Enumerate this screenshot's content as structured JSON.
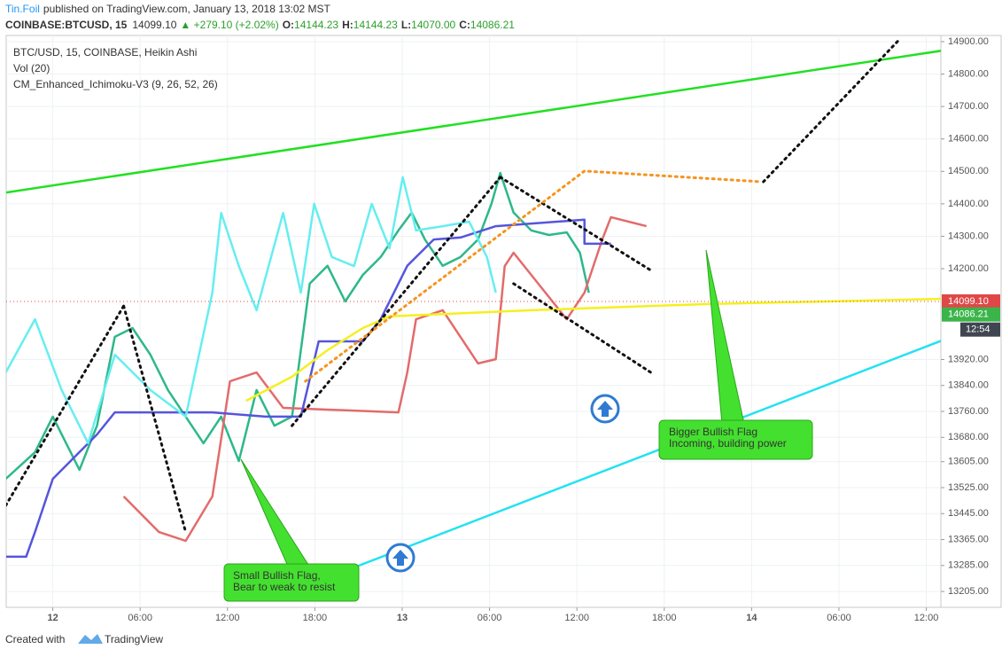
{
  "header": {
    "author": "Tin.Foil",
    "published": "published on TradingView.com, January 13, 2018 13:02 MST",
    "symbol": "COINBASE:BTCUSD, 15",
    "price": "14099.10",
    "change": "▲ +279.10 (+2.02%)",
    "o_label": "O:",
    "o": "14144.23",
    "h_label": "H:",
    "h": "14144.23",
    "l_label": "L:",
    "l": "14070.00",
    "c_label": "C:",
    "c": "14086.21"
  },
  "chart_data": {
    "type": "line",
    "legend": [
      "BTC/USD, 15, COINBASE, Heikin Ashi",
      "Vol (20)",
      "CM_Enhanced_Ichimoku-V3 (9, 26, 52, 26)"
    ],
    "xlim": [
      -3.2,
      61
    ],
    "ylim": [
      13156,
      14919
    ],
    "grid": true,
    "xticks": [
      {
        "value": 0,
        "label": "12"
      },
      {
        "value": 6,
        "label": "06:00"
      },
      {
        "value": 12,
        "label": "12:00"
      },
      {
        "value": 18,
        "label": "18:00"
      },
      {
        "value": 24,
        "label": "13"
      },
      {
        "value": 30,
        "label": "06:00"
      },
      {
        "value": 36,
        "label": "12:00"
      },
      {
        "value": 42,
        "label": "18:00"
      },
      {
        "value": 48,
        "label": "14"
      },
      {
        "value": 54,
        "label": "06:00"
      },
      {
        "value": 60,
        "label": "12:00"
      }
    ],
    "yticks": [
      {
        "value": 14900,
        "label": "14900.00"
      },
      {
        "value": 14800,
        "label": "14800.00"
      },
      {
        "value": 14700,
        "label": "14700.00"
      },
      {
        "value": 14600,
        "label": "14600.00"
      },
      {
        "value": 14500,
        "label": "14500.00"
      },
      {
        "value": 14400,
        "label": "14400.00"
      },
      {
        "value": 14300,
        "label": "14300.00"
      },
      {
        "value": 14200,
        "label": "14200.00"
      },
      {
        "value": 13920,
        "label": "13920.00"
      },
      {
        "value": 13840,
        "label": "13840.00"
      },
      {
        "value": 13760,
        "label": "13760.00"
      },
      {
        "value": 13680,
        "label": "13680.00"
      },
      {
        "value": 13605,
        "label": "13605.00"
      },
      {
        "value": 13525,
        "label": "13525.00"
      },
      {
        "value": 13445,
        "label": "13445.00"
      },
      {
        "value": 13365,
        "label": "13365.00"
      },
      {
        "value": 13285,
        "label": "13285.00"
      },
      {
        "value": 13205,
        "label": "13205.00"
      }
    ],
    "last_price": {
      "value": 14099.1,
      "label": "14099.10"
    },
    "close_price": 14086.21,
    "countdown": "12:54",
    "series": [
      {
        "color": "#2db88a",
        "style": "solid",
        "x": [
          -3.23,
          -1.22,
          0,
          1.83,
          3.04,
          4.26,
          5.48,
          6.7,
          7.91,
          9.13,
          10.35,
          11.56,
          12.78,
          14.0,
          15.22,
          16.43,
          17.65,
          18.87,
          20.09,
          21.3,
          22.52,
          23.74,
          24.65,
          25.56,
          26.78,
          28.0,
          29.21,
          30.13,
          30.74,
          31.65,
          32.87,
          34.08,
          35.3,
          36.21,
          36.82
        ],
        "values": [
          13552,
          13634,
          13744,
          13580,
          13716,
          13990,
          14017,
          13935,
          13826,
          13744,
          13662,
          13744,
          13607,
          13826,
          13716,
          13744,
          14154,
          14209,
          14099,
          14181,
          14236,
          14318,
          14373,
          14290,
          14209,
          14236,
          14290,
          14400,
          14495,
          14373,
          14318,
          14304,
          14312,
          14249,
          14126
        ]
      },
      {
        "color": "#e36b6b",
        "style": "solid",
        "x": [
          4.87,
          7.3,
          9.13,
          10.96,
          12.17,
          14.0,
          15.82,
          23.74,
          24.35,
          24.95,
          26.78,
          29.21,
          30.43,
          31.04,
          31.65,
          35.3,
          36.52,
          37.74,
          38.34,
          40.78
        ],
        "values": [
          13498,
          13388,
          13361,
          13498,
          13853,
          13880,
          13771,
          13757,
          13880,
          14044,
          14072,
          13908,
          13921,
          14208,
          14249,
          14044,
          14126,
          14290,
          14359,
          14331
        ]
      },
      {
        "color": "#5555dd",
        "style": "solid",
        "x": [
          -3.23,
          -1.83,
          -1.22,
          0,
          3.04,
          4.26,
          8.52,
          10.96,
          14.61,
          17.04,
          18.26,
          21.3,
          22.52,
          24.35,
          26.17,
          28.0,
          30.43,
          36.52,
          36.52,
          38.34
        ],
        "values": [
          13312,
          13312,
          13388,
          13552,
          13689,
          13757,
          13757,
          13757,
          13744,
          13744,
          13976,
          13976,
          14044,
          14209,
          14290,
          14296,
          14331,
          14351,
          14277,
          14277
        ]
      },
      {
        "color": "#66eef0",
        "style": "solid",
        "x": [
          -3.23,
          -1.22,
          0.61,
          2.43,
          4.26,
          6.7,
          9.13,
          10.96,
          11.56,
          12.78,
          14.0,
          15.82,
          17.04,
          17.95,
          19.17,
          20.69,
          21.91,
          23.13,
          24.04,
          24.95,
          26.78,
          28.6,
          29.82,
          30.43
        ],
        "values": [
          13880,
          14044,
          13826,
          13662,
          13935,
          13826,
          13744,
          14126,
          14372,
          14208,
          14072,
          14372,
          14126,
          14400,
          14236,
          14208,
          14400,
          14263,
          14482,
          14318,
          14331,
          14345,
          14236,
          14126
        ]
      },
      {
        "color": "#f4f020",
        "style": "solid",
        "x": [
          13.27,
          16.43,
          18.87,
          21.3,
          23.13,
          32.87,
          45.04,
          61.17
        ],
        "values": [
          13793,
          13867,
          13949,
          14017,
          14053,
          14072,
          14091,
          14107
        ]
      },
      {
        "color": "#22e022",
        "style": "solid",
        "x": [
          -3.2,
          61.2
        ],
        "values": [
          14435,
          14873
        ]
      },
      {
        "color": "#22e2f0",
        "style": "solid",
        "x": [
          20.7,
          61.2
        ],
        "values": [
          13279,
          13981
        ]
      },
      {
        "color": "#111111",
        "style": "dotted",
        "x": [
          -3.23,
          4.87
        ],
        "values": [
          13470,
          14085
        ]
      },
      {
        "color": "#111111",
        "style": "dotted",
        "x": [
          4.87,
          9.13
        ],
        "values": [
          14085,
          13388
        ]
      },
      {
        "color": "#111111",
        "style": "dotted",
        "x": [
          16.43,
          30.74
        ],
        "values": [
          13716,
          14482
        ]
      },
      {
        "color": "#111111",
        "style": "dotted",
        "x": [
          30.74,
          41.08
        ],
        "values": [
          14482,
          14195
        ]
      },
      {
        "color": "#111111",
        "style": "dotted",
        "x": [
          31.65,
          41.08
        ],
        "values": [
          14154,
          13880
        ]
      },
      {
        "color": "#111111",
        "style": "dotted",
        "x": [
          48.81,
          58.12
        ],
        "values": [
          14468,
          14905
        ]
      },
      {
        "color": "#f5941e",
        "style": "dotted",
        "x": [
          17.35,
          36.52,
          48.69
        ],
        "values": [
          13853,
          14501,
          14468
        ]
      }
    ],
    "annotations": [
      {
        "lines": [
          "Small Bullish Flag,",
          "Bear to weak to resist"
        ]
      },
      {
        "lines": [
          "Bigger Bullish Flag",
          "Incoming, building power"
        ]
      }
    ]
  },
  "footer": {
    "created": "Created with",
    "brand": "TradingView"
  }
}
